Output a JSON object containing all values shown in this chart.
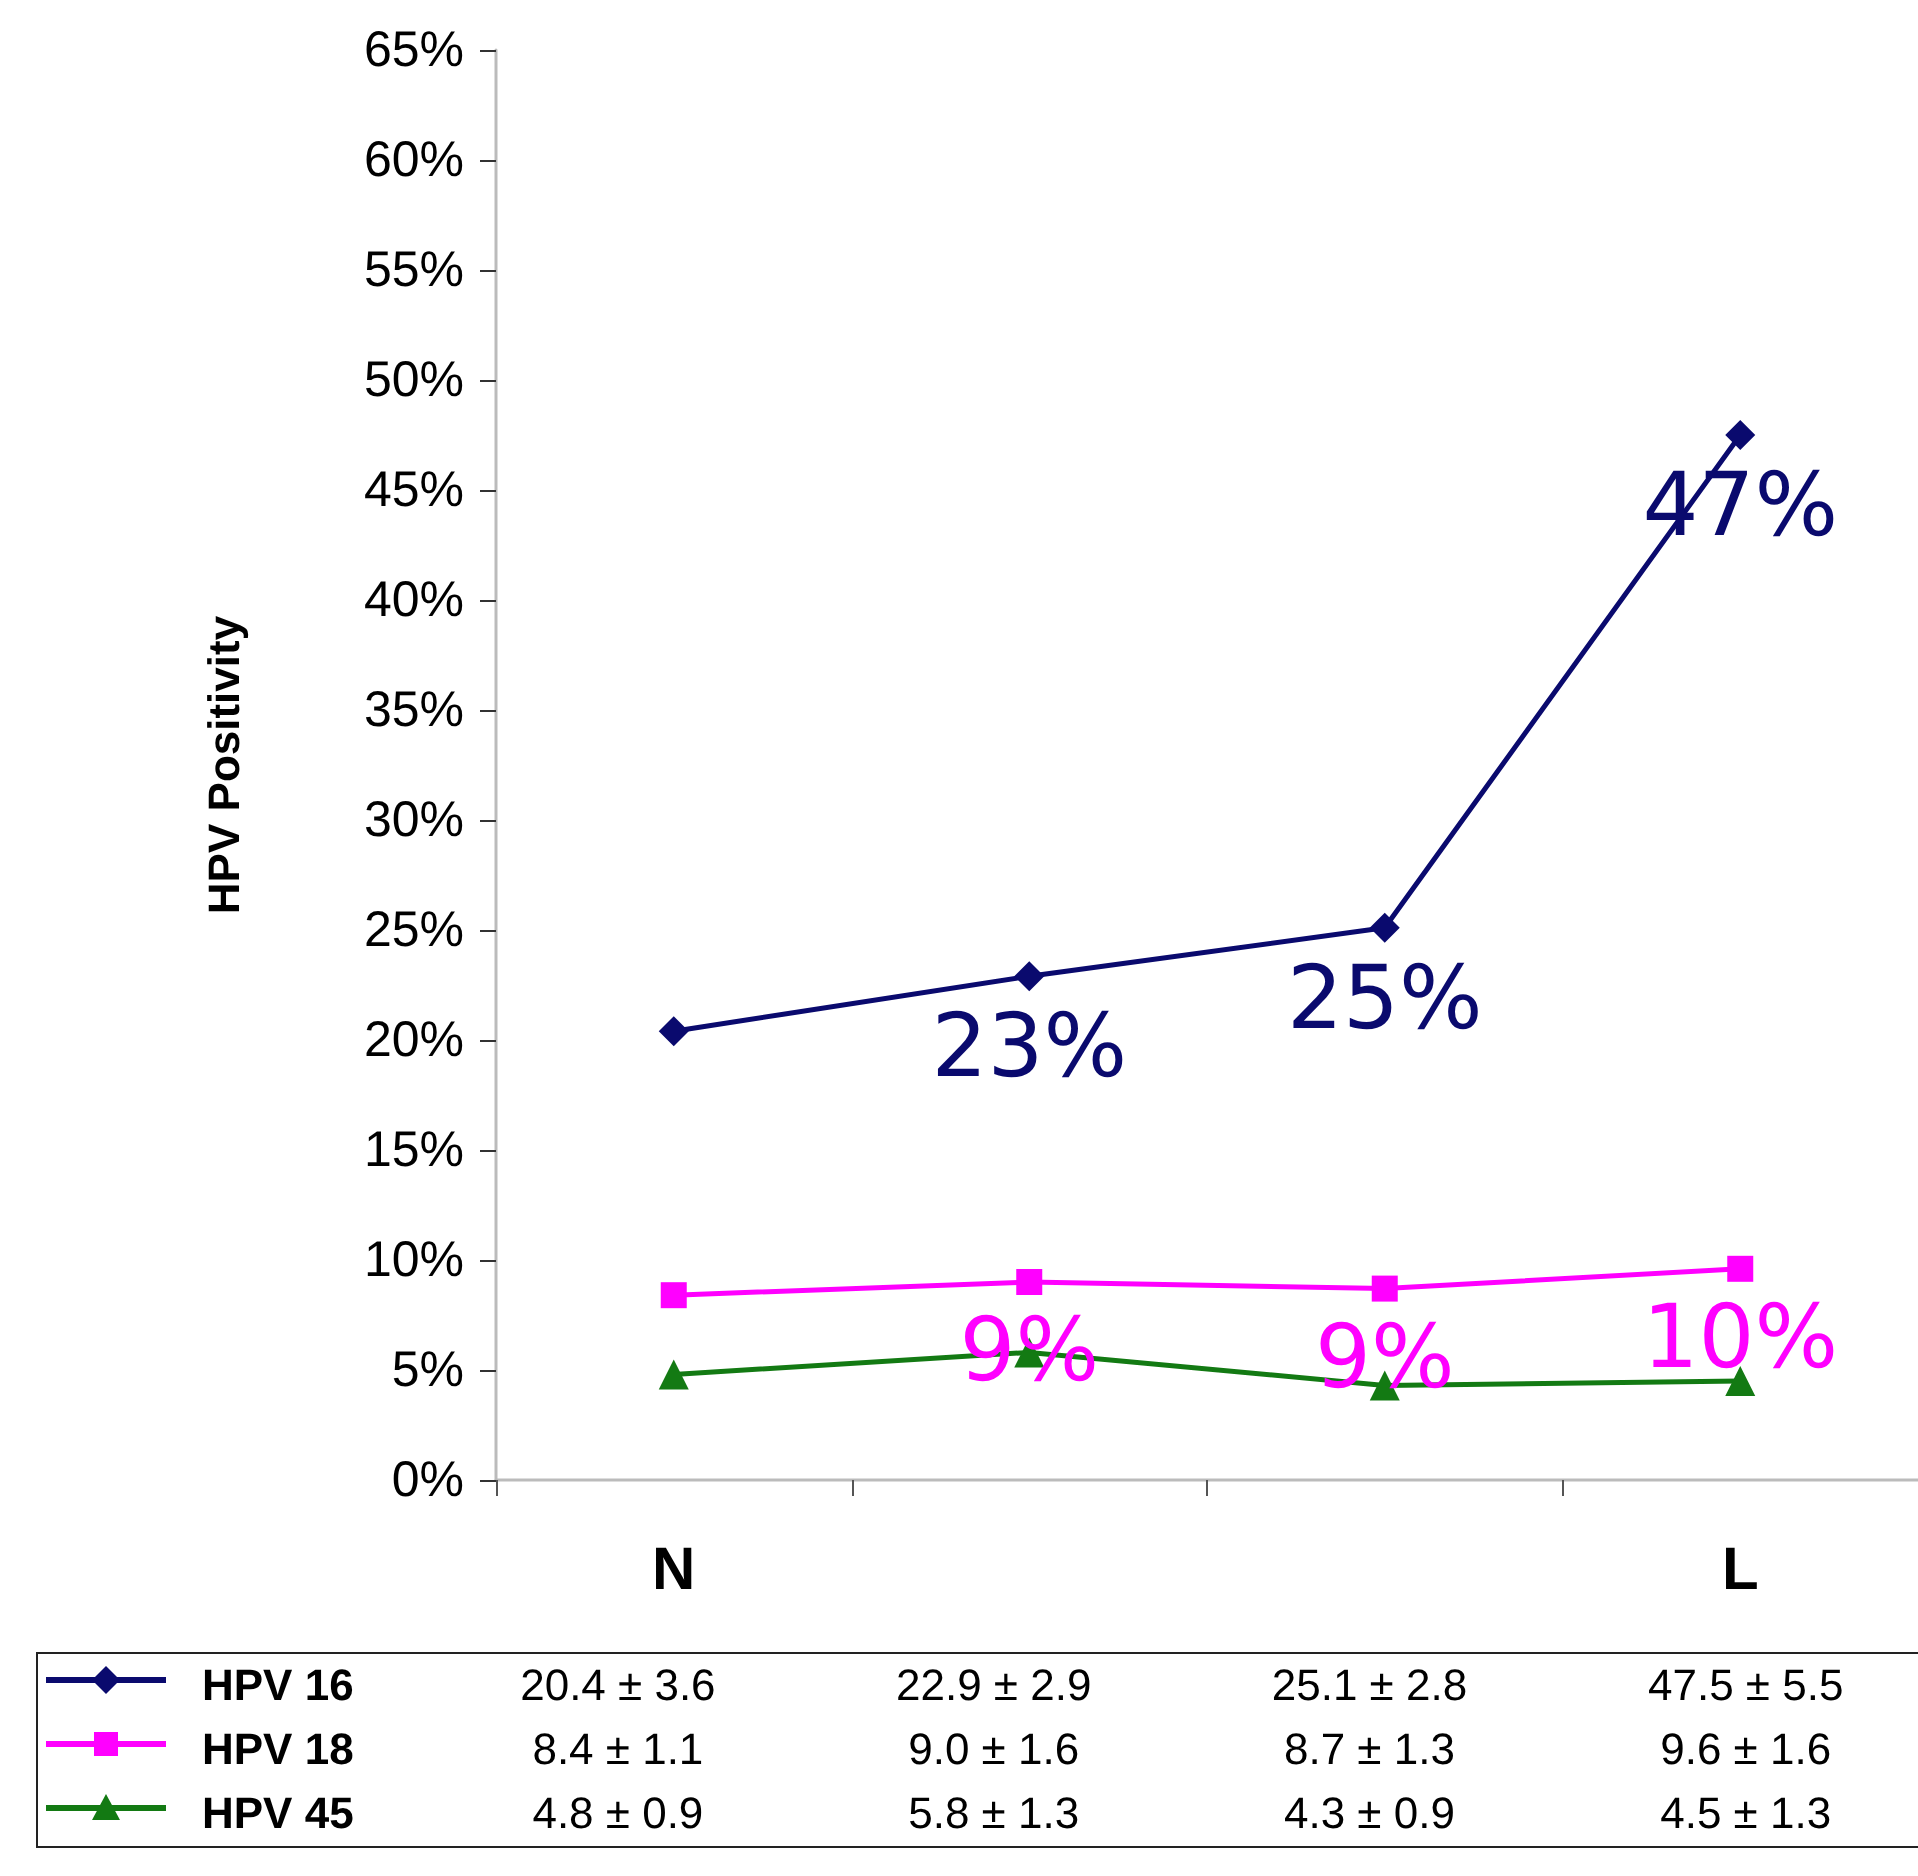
{
  "chart_data": {
    "type": "line",
    "ylabel": "HPV Positivity",
    "categories": [
      "N",
      null,
      null,
      "L"
    ],
    "ylim": [
      0,
      65
    ],
    "yticks": [
      {
        "value": 0,
        "label": "0%"
      },
      {
        "value": 5,
        "label": "5%"
      },
      {
        "value": 10,
        "label": "10%"
      },
      {
        "value": 15,
        "label": "15%"
      },
      {
        "value": 20,
        "label": "20%"
      },
      {
        "value": 25,
        "label": "25%"
      },
      {
        "value": 30,
        "label": "30%"
      },
      {
        "value": 35,
        "label": "35%"
      },
      {
        "value": 40,
        "label": "40%"
      },
      {
        "value": 45,
        "label": "45%"
      },
      {
        "value": 50,
        "label": "50%"
      },
      {
        "value": 55,
        "label": "55%"
      },
      {
        "value": 60,
        "label": "60%"
      },
      {
        "value": 65,
        "label": "65%"
      }
    ],
    "series": [
      {
        "name": "HPV 16",
        "color": "#0a0a6e",
        "marker": "diamond",
        "values": [
          20.4,
          22.9,
          25.1,
          47.5
        ],
        "value_labels": [
          null,
          "23%",
          "25%",
          "47%"
        ]
      },
      {
        "name": "HPV 18",
        "color": "#ff00ff",
        "marker": "square",
        "values": [
          8.4,
          9.0,
          8.7,
          9.6
        ],
        "value_labels": [
          null,
          "9%",
          "9%",
          "10%"
        ]
      },
      {
        "name": "HPV 45",
        "color": "#137a13",
        "marker": "triangle",
        "values": [
          4.8,
          5.8,
          4.3,
          4.5
        ]
      }
    ],
    "annotations": [
      "20.4 ± 3.6",
      "22.9 ± 2.9",
      "25.1 ± 2.8",
      "47.5 ± 5.5",
      "8.4 ± 1.1",
      "9.0 ± 1.6",
      "8.7 ± 1.3",
      "9.6 ± 1.6",
      "4.8 ± 0.9",
      "5.8 ± 1.3",
      "4.3 ± 0.9",
      "4.5 ± 1.3"
    ],
    "legend": "bottom",
    "grid": false,
    "line_style": "solid"
  }
}
